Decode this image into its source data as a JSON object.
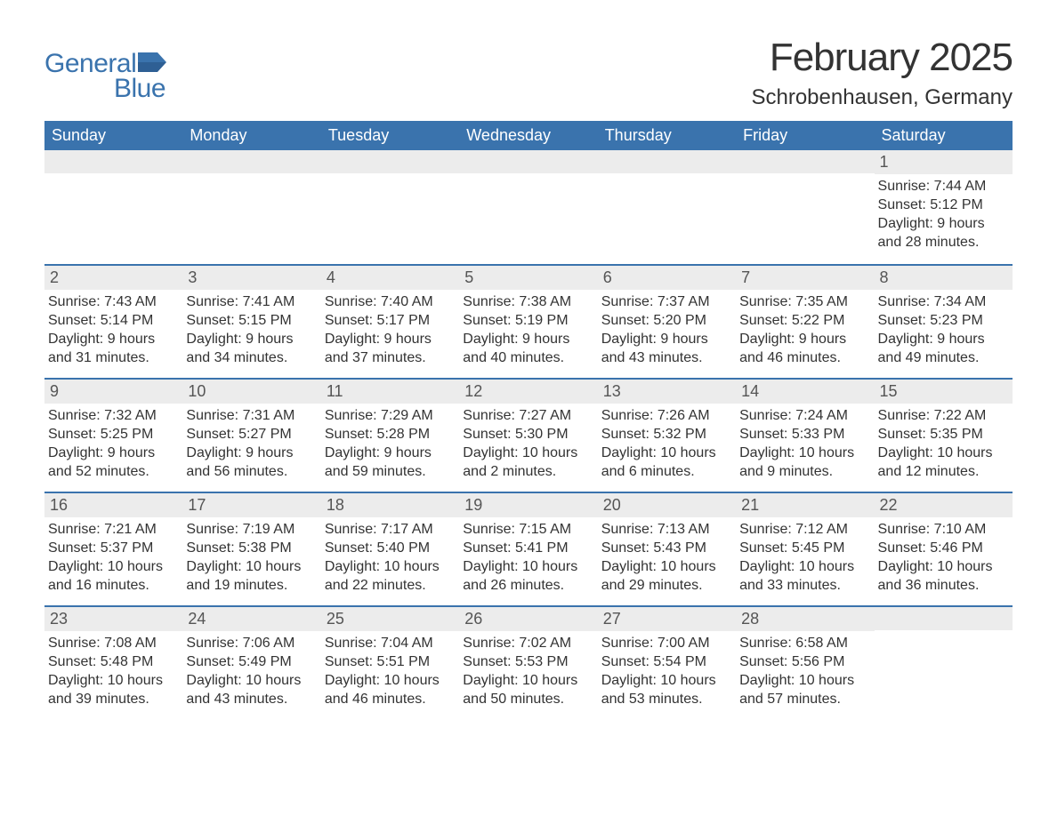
{
  "logo": {
    "text_general": "General",
    "text_blue": "Blue",
    "flag_color": "#3a73ad"
  },
  "title": "February 2025",
  "location": "Schrobenhausen, Germany",
  "colors": {
    "header_bg": "#3a73ad",
    "header_text": "#ffffff",
    "daybar_bg": "#ececec",
    "daybar_text": "#555555",
    "body_text": "#333333",
    "row_border": "#3a73ad",
    "background": "#ffffff"
  },
  "weekdays": [
    "Sunday",
    "Monday",
    "Tuesday",
    "Wednesday",
    "Thursday",
    "Friday",
    "Saturday"
  ],
  "weeks": [
    [
      null,
      null,
      null,
      null,
      null,
      null,
      {
        "day": "1",
        "sunrise": "Sunrise: 7:44 AM",
        "sunset": "Sunset: 5:12 PM",
        "daylight1": "Daylight: 9 hours",
        "daylight2": "and 28 minutes."
      }
    ],
    [
      {
        "day": "2",
        "sunrise": "Sunrise: 7:43 AM",
        "sunset": "Sunset: 5:14 PM",
        "daylight1": "Daylight: 9 hours",
        "daylight2": "and 31 minutes."
      },
      {
        "day": "3",
        "sunrise": "Sunrise: 7:41 AM",
        "sunset": "Sunset: 5:15 PM",
        "daylight1": "Daylight: 9 hours",
        "daylight2": "and 34 minutes."
      },
      {
        "day": "4",
        "sunrise": "Sunrise: 7:40 AM",
        "sunset": "Sunset: 5:17 PM",
        "daylight1": "Daylight: 9 hours",
        "daylight2": "and 37 minutes."
      },
      {
        "day": "5",
        "sunrise": "Sunrise: 7:38 AM",
        "sunset": "Sunset: 5:19 PM",
        "daylight1": "Daylight: 9 hours",
        "daylight2": "and 40 minutes."
      },
      {
        "day": "6",
        "sunrise": "Sunrise: 7:37 AM",
        "sunset": "Sunset: 5:20 PM",
        "daylight1": "Daylight: 9 hours",
        "daylight2": "and 43 minutes."
      },
      {
        "day": "7",
        "sunrise": "Sunrise: 7:35 AM",
        "sunset": "Sunset: 5:22 PM",
        "daylight1": "Daylight: 9 hours",
        "daylight2": "and 46 minutes."
      },
      {
        "day": "8",
        "sunrise": "Sunrise: 7:34 AM",
        "sunset": "Sunset: 5:23 PM",
        "daylight1": "Daylight: 9 hours",
        "daylight2": "and 49 minutes."
      }
    ],
    [
      {
        "day": "9",
        "sunrise": "Sunrise: 7:32 AM",
        "sunset": "Sunset: 5:25 PM",
        "daylight1": "Daylight: 9 hours",
        "daylight2": "and 52 minutes."
      },
      {
        "day": "10",
        "sunrise": "Sunrise: 7:31 AM",
        "sunset": "Sunset: 5:27 PM",
        "daylight1": "Daylight: 9 hours",
        "daylight2": "and 56 minutes."
      },
      {
        "day": "11",
        "sunrise": "Sunrise: 7:29 AM",
        "sunset": "Sunset: 5:28 PM",
        "daylight1": "Daylight: 9 hours",
        "daylight2": "and 59 minutes."
      },
      {
        "day": "12",
        "sunrise": "Sunrise: 7:27 AM",
        "sunset": "Sunset: 5:30 PM",
        "daylight1": "Daylight: 10 hours",
        "daylight2": "and 2 minutes."
      },
      {
        "day": "13",
        "sunrise": "Sunrise: 7:26 AM",
        "sunset": "Sunset: 5:32 PM",
        "daylight1": "Daylight: 10 hours",
        "daylight2": "and 6 minutes."
      },
      {
        "day": "14",
        "sunrise": "Sunrise: 7:24 AM",
        "sunset": "Sunset: 5:33 PM",
        "daylight1": "Daylight: 10 hours",
        "daylight2": "and 9 minutes."
      },
      {
        "day": "15",
        "sunrise": "Sunrise: 7:22 AM",
        "sunset": "Sunset: 5:35 PM",
        "daylight1": "Daylight: 10 hours",
        "daylight2": "and 12 minutes."
      }
    ],
    [
      {
        "day": "16",
        "sunrise": "Sunrise: 7:21 AM",
        "sunset": "Sunset: 5:37 PM",
        "daylight1": "Daylight: 10 hours",
        "daylight2": "and 16 minutes."
      },
      {
        "day": "17",
        "sunrise": "Sunrise: 7:19 AM",
        "sunset": "Sunset: 5:38 PM",
        "daylight1": "Daylight: 10 hours",
        "daylight2": "and 19 minutes."
      },
      {
        "day": "18",
        "sunrise": "Sunrise: 7:17 AM",
        "sunset": "Sunset: 5:40 PM",
        "daylight1": "Daylight: 10 hours",
        "daylight2": "and 22 minutes."
      },
      {
        "day": "19",
        "sunrise": "Sunrise: 7:15 AM",
        "sunset": "Sunset: 5:41 PM",
        "daylight1": "Daylight: 10 hours",
        "daylight2": "and 26 minutes."
      },
      {
        "day": "20",
        "sunrise": "Sunrise: 7:13 AM",
        "sunset": "Sunset: 5:43 PM",
        "daylight1": "Daylight: 10 hours",
        "daylight2": "and 29 minutes."
      },
      {
        "day": "21",
        "sunrise": "Sunrise: 7:12 AM",
        "sunset": "Sunset: 5:45 PM",
        "daylight1": "Daylight: 10 hours",
        "daylight2": "and 33 minutes."
      },
      {
        "day": "22",
        "sunrise": "Sunrise: 7:10 AM",
        "sunset": "Sunset: 5:46 PM",
        "daylight1": "Daylight: 10 hours",
        "daylight2": "and 36 minutes."
      }
    ],
    [
      {
        "day": "23",
        "sunrise": "Sunrise: 7:08 AM",
        "sunset": "Sunset: 5:48 PM",
        "daylight1": "Daylight: 10 hours",
        "daylight2": "and 39 minutes."
      },
      {
        "day": "24",
        "sunrise": "Sunrise: 7:06 AM",
        "sunset": "Sunset: 5:49 PM",
        "daylight1": "Daylight: 10 hours",
        "daylight2": "and 43 minutes."
      },
      {
        "day": "25",
        "sunrise": "Sunrise: 7:04 AM",
        "sunset": "Sunset: 5:51 PM",
        "daylight1": "Daylight: 10 hours",
        "daylight2": "and 46 minutes."
      },
      {
        "day": "26",
        "sunrise": "Sunrise: 7:02 AM",
        "sunset": "Sunset: 5:53 PM",
        "daylight1": "Daylight: 10 hours",
        "daylight2": "and 50 minutes."
      },
      {
        "day": "27",
        "sunrise": "Sunrise: 7:00 AM",
        "sunset": "Sunset: 5:54 PM",
        "daylight1": "Daylight: 10 hours",
        "daylight2": "and 53 minutes."
      },
      {
        "day": "28",
        "sunrise": "Sunrise: 6:58 AM",
        "sunset": "Sunset: 5:56 PM",
        "daylight1": "Daylight: 10 hours",
        "daylight2": "and 57 minutes."
      },
      null
    ]
  ]
}
